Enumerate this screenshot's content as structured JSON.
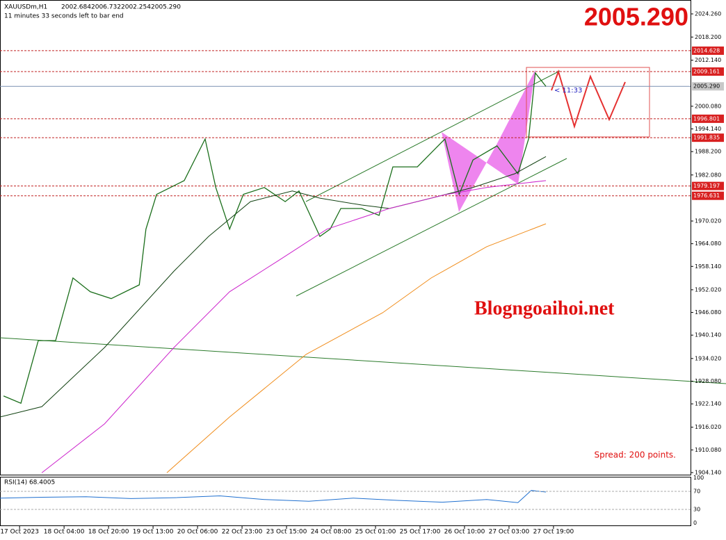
{
  "header": {
    "symbol": "XAUUSDm,H1",
    "ohlc": [
      "2002.684",
      "2006.732",
      "2002.254",
      "2005.290"
    ],
    "timer": "11 minutes 33 seconds left to bar end"
  },
  "price_display": "2005.290",
  "watermark": "Blogngoaihoi.net",
  "spread": "Spread: 200 points.",
  "countdown": "< 11:33",
  "chart_data": {
    "type": "line",
    "ylim": [
      1904.14,
      2024.26
    ],
    "yticks": [
      {
        "value": 2024.26,
        "label": "2024.260"
      },
      {
        "value": 2018.2,
        "label": "2018.200"
      },
      {
        "value": 2012.14,
        "label": "2012.140"
      },
      {
        "value": 2000.08,
        "label": "2000.080"
      },
      {
        "value": 1994.14,
        "label": "1994.140"
      },
      {
        "value": 1988.2,
        "label": "1988.200"
      },
      {
        "value": 1982.08,
        "label": "1982.080"
      },
      {
        "value": 1970.02,
        "label": "1970.020"
      },
      {
        "value": 1964.08,
        "label": "1964.080"
      },
      {
        "value": 1958.14,
        "label": "1958.140"
      },
      {
        "value": 1952.02,
        "label": "1952.020"
      },
      {
        "value": 1946.08,
        "label": "1946.080"
      },
      {
        "value": 1940.14,
        "label": "1940.140"
      },
      {
        "value": 1934.02,
        "label": "1934.020"
      },
      {
        "value": 1928.08,
        "label": "1928.080"
      },
      {
        "value": 1922.14,
        "label": "1922.140"
      },
      {
        "value": 1916.02,
        "label": "1916.020"
      },
      {
        "value": 1910.08,
        "label": "1910.080"
      },
      {
        "value": 1904.14,
        "label": "1904.140"
      }
    ],
    "xlim": [
      -0.44,
      15.08
    ],
    "xticks": [
      {
        "value": 0,
        "label": "17 Oct 2023"
      },
      {
        "value": 1,
        "label": "18 Oct 04:00"
      },
      {
        "value": 2,
        "label": "18 Oct 20:00"
      },
      {
        "value": 3,
        "label": "19 Oct 13:00"
      },
      {
        "value": 4,
        "label": "20 Oct 06:00"
      },
      {
        "value": 5,
        "label": "22 Oct 23:00"
      },
      {
        "value": 6,
        "label": "23 Oct 15:00"
      },
      {
        "value": 7,
        "label": "24 Oct 08:00"
      },
      {
        "value": 8,
        "label": "25 Oct 01:00"
      },
      {
        "value": 9,
        "label": "25 Oct 17:00"
      },
      {
        "value": 10,
        "label": "26 Oct 10:00"
      },
      {
        "value": 11,
        "label": "27 Oct 03:00"
      },
      {
        "value": 12,
        "label": "27 Oct 19:00"
      }
    ],
    "levels": [
      2014.628,
      2009.161,
      {
        "value": 2005.29,
        "label": "2005.290"
      },
      1996.801,
      1991.835,
      1979.197,
      1976.631
    ],
    "series": [
      {
        "color": "#1a6e1a",
        "x": [
          -0.36,
          0.03,
          0.42,
          0.81,
          1.2,
          1.59,
          2.06,
          2.69,
          2.84,
          3.08,
          3.7,
          4.17,
          4.41,
          4.72,
          5.03,
          5.5,
          5.97,
          6.28,
          6.75,
          6.98,
          7.22,
          7.69,
          8.08,
          8.39,
          8.94,
          9.33,
          9.56,
          9.88,
          10.19,
          10.73,
          11.2,
          11.44,
          11.59,
          11.83
        ],
        "values": [
          1924.2,
          1922.3,
          1938.7,
          1938.7,
          1955.1,
          1951.5,
          1949.7,
          1953.3,
          1967.9,
          1977.0,
          1980.6,
          1991.5,
          1978.8,
          1967.9,
          1977.0,
          1978.8,
          1975.1,
          1977.9,
          1966.0,
          1967.9,
          1973.3,
          1973.3,
          1971.5,
          1984.2,
          1984.2,
          1988.8,
          1991.5,
          1977.0,
          1986.0,
          1989.7,
          1982.4,
          1991.5,
          2008.8,
          2005.29
        ]
      },
      {
        "color": "#104010",
        "x": [
          -0.44,
          0.5,
          1.91,
          3.47,
          4.25,
          5.19,
          6.13,
          6.75,
          7.69,
          8.31,
          9.25,
          10.19,
          11.13,
          11.83
        ],
        "values": [
          1918.7,
          1921.4,
          1936.9,
          1956.9,
          1966.0,
          1975.1,
          1977.9,
          1976.0,
          1974.2,
          1973.3,
          1976.0,
          1978.8,
          1982.4,
          1986.9
        ]
      },
      {
        "color": "#cc22cc",
        "x": [
          0.5,
          1.91,
          3.47,
          4.72,
          5.81,
          6.91,
          8.31,
          9.56,
          10.5,
          11.13,
          11.83
        ],
        "values": [
          1904.1,
          1916.9,
          1936.9,
          1951.5,
          1959.6,
          1967.9,
          1973.3,
          1976.9,
          1978.8,
          1979.7,
          1980.6
        ]
      },
      {
        "color": "#f08c1a",
        "x": [
          3.31,
          4.72,
          6.44,
          8.16,
          9.25,
          10.5,
          11.83
        ],
        "values": [
          1904.1,
          1918.7,
          1935.1,
          1946.0,
          1955.1,
          1963.3,
          1969.3
        ]
      }
    ]
  },
  "rsi": {
    "title": "RSI(14) 68.4005",
    "ylim": [
      0,
      100
    ],
    "yticks": [
      100,
      70,
      30,
      0
    ],
    "x": [
      -0.44,
      0.5,
      1.5,
      2.5,
      3.5,
      4.5,
      5.5,
      6.5,
      7.5,
      8.5,
      9.5,
      10.5,
      11.2,
      11.5,
      11.83
    ],
    "values": [
      55,
      57,
      58,
      54,
      56,
      60,
      52,
      48,
      55,
      50,
      46,
      52,
      45,
      72,
      68.4005
    ]
  }
}
